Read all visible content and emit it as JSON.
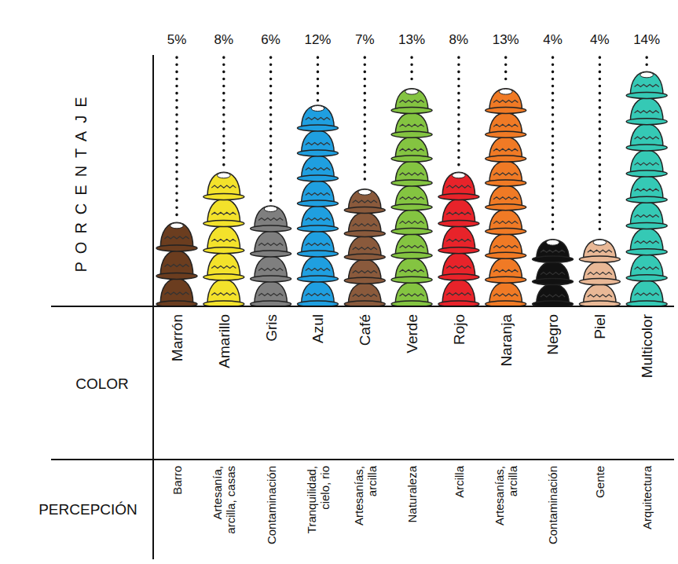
{
  "chart_data": {
    "type": "bar",
    "y_label": "PORCENTAJE",
    "x_label": "COLOR",
    "perception_label": "PERCEPCIÓN",
    "categories": [
      "Marrón",
      "Amarillo",
      "Gris",
      "Azul",
      "Café",
      "Verde",
      "Rojo",
      "Naranja",
      "Negro",
      "Piel",
      "Multicolor"
    ],
    "perceptions": [
      "Barro",
      "Artesanía, arcilla, casas",
      "Contaminación",
      "Tranquilidad, cielo, rio",
      "Artesanías, arcilla",
      "Naturaleza",
      "Arcilla",
      "Artesanías, arcilla",
      "Contaminación",
      "Gente",
      "Arquitectura"
    ],
    "values": [
      5,
      8,
      6,
      12,
      7,
      13,
      8,
      13,
      4,
      4,
      14
    ],
    "value_labels": [
      "5%",
      "8%",
      "6%",
      "12%",
      "7%",
      "13%",
      "8%",
      "13%",
      "4%",
      "4%",
      "14%"
    ],
    "colors": [
      "#6b3d1f",
      "#f3e22b",
      "#7f7f7f",
      "#1f9fe0",
      "#8a5a3c",
      "#84c441",
      "#e8232a",
      "#f07a25",
      "#111111",
      "#e9b896",
      "#35c9b5"
    ],
    "ylim": [
      0,
      15
    ],
    "yticks": [],
    "tick_labels": "x",
    "data_labels": true,
    "grid": false
  }
}
